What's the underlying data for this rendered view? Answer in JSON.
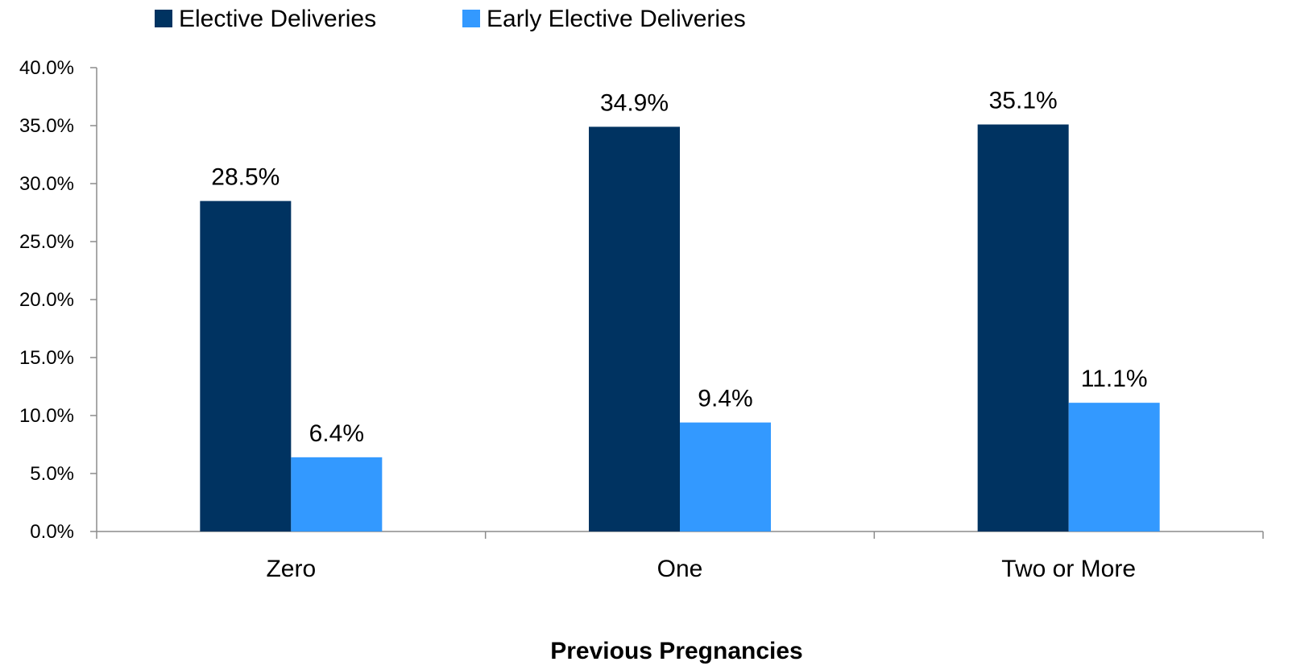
{
  "chart_data": {
    "type": "bar",
    "title": "",
    "xlabel": "Previous Pregnancies",
    "ylabel": "",
    "ylim": [
      0,
      40
    ],
    "yticks": [
      "0.0%",
      "5.0%",
      "10.0%",
      "15.0%",
      "20.0%",
      "25.0%",
      "30.0%",
      "35.0%",
      "40.0%"
    ],
    "ytick_values": [
      0,
      5,
      10,
      15,
      20,
      25,
      30,
      35,
      40
    ],
    "categories": [
      "Zero",
      "One",
      "Two or More"
    ],
    "series": [
      {
        "name": "Elective Deliveries",
        "color": "#003361",
        "values": [
          28.5,
          34.9,
          35.1
        ],
        "labels": [
          "28.5%",
          "34.9%",
          "35.1%"
        ]
      },
      {
        "name": "Early Elective Deliveries",
        "color": "#3399ff",
        "values": [
          6.4,
          9.4,
          11.1
        ],
        "labels": [
          "6.4%",
          "9.4%",
          "11.1%"
        ]
      }
    ],
    "legend_position": "top-left",
    "grid": false
  }
}
